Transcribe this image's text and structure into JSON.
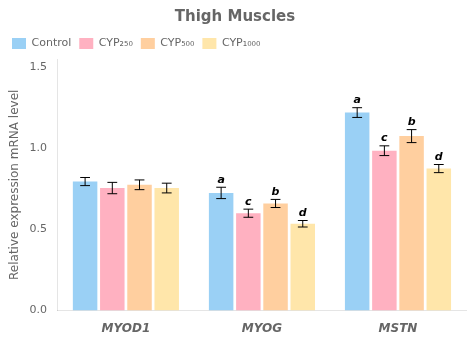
{
  "chart_data": {
    "type": "bar",
    "title": "Thigh Muscles",
    "ylabel": "Relative expression mRNA level",
    "categories": [
      "MYOD1",
      "MYOG",
      "MSTN"
    ],
    "series": [
      {
        "name": "Control",
        "values": [
          0.795,
          0.725,
          1.22
        ],
        "errors": [
          0.025,
          0.035,
          0.03
        ],
        "significance": [
          null,
          "a",
          "a"
        ]
      },
      {
        "name": "CYP₂₅₀",
        "values": [
          0.755,
          0.6,
          0.985
        ],
        "errors": [
          0.035,
          0.025,
          0.03
        ],
        "significance": [
          null,
          "c",
          "c"
        ]
      },
      {
        "name": "CYP₅₀₀",
        "values": [
          0.775,
          0.66,
          1.075
        ],
        "errors": [
          0.03,
          0.025,
          0.04
        ],
        "significance": [
          null,
          "b",
          "b"
        ]
      },
      {
        "name": "CYP₁₀₀₀",
        "values": [
          0.755,
          0.535,
          0.875
        ],
        "errors": [
          0.03,
          0.02,
          0.025
        ],
        "significance": [
          null,
          "d",
          "d"
        ]
      }
    ],
    "ylim": [
      0.0,
      1.55
    ],
    "yticks": [
      {
        "value": 0,
        "label": "0.0"
      },
      0.5,
      {
        "value": 1,
        "label": "1.0"
      },
      1.5
    ],
    "grid": false,
    "legend": "upper left"
  }
}
